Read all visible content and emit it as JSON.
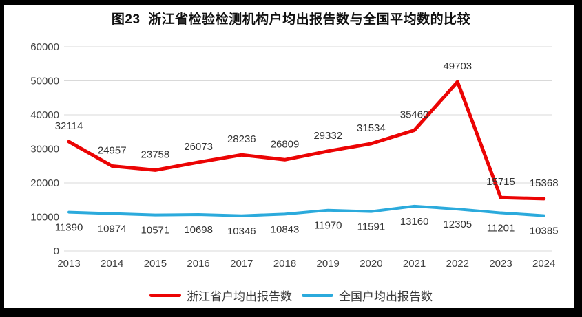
{
  "title": "图23  浙江省检验检测机构户均出报告数与全国平均数的比较",
  "chart_data": {
    "type": "line",
    "title": "图23  浙江省检验检测机构户均出报告数与全国平均数的比较",
    "categories": [
      "2013",
      "2014",
      "2015",
      "2016",
      "2017",
      "2018",
      "2019",
      "2020",
      "2021",
      "2022",
      "2023",
      "2024"
    ],
    "series": [
      {
        "name": "浙江省户均出报告数",
        "color": "#EB0404",
        "values": [
          32114,
          24957,
          23758,
          26073,
          28236,
          26809,
          29332,
          31534,
          35460,
          49703,
          15715,
          15368
        ],
        "label_position": "above"
      },
      {
        "name": "全国户均出报告数",
        "color": "#2BAADC",
        "values": [
          11390,
          10974,
          10571,
          10698,
          10346,
          10843,
          11970,
          11591,
          13160,
          12305,
          11201,
          10385
        ],
        "label_position": "below"
      }
    ],
    "ylim": [
      0,
      60000
    ],
    "y_ticks": [
      0,
      10000,
      20000,
      30000,
      40000,
      50000,
      60000
    ],
    "grid": "horizontal-only",
    "legend_position": "bottom",
    "data_labels": true,
    "gridline_color": "#D9D9D9",
    "axis_text_color": "#404040",
    "frame_color": "#000000"
  }
}
